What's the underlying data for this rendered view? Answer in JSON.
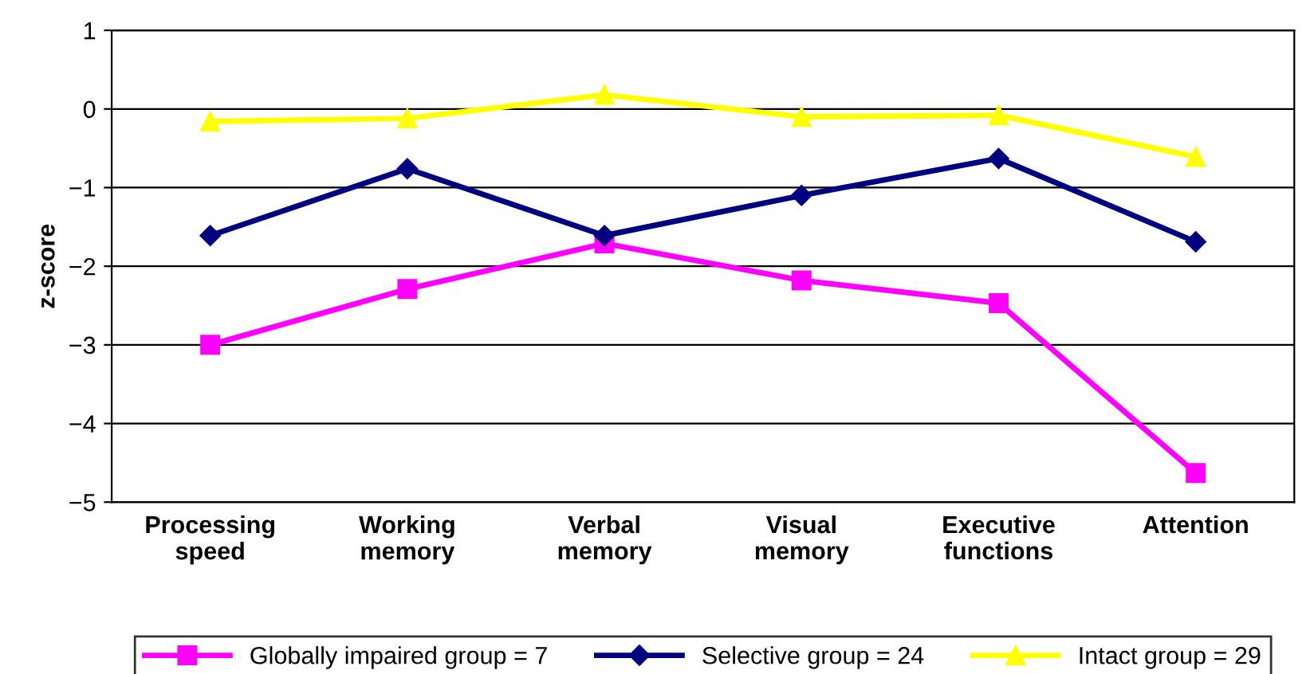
{
  "chart_data": {
    "type": "line",
    "ylabel": "z-score",
    "categories": [
      "Processing\nspeed",
      "Working\nmemory",
      "Verbal\nmemory",
      "Visual\nmemory",
      "Executive\nfunctions",
      "Attention"
    ],
    "ylim": [
      -5,
      1
    ],
    "yticks": [
      -5,
      -4,
      -3,
      -2,
      -1,
      0,
      1
    ],
    "grid": "y",
    "legend": "bottom",
    "series": [
      {
        "name": "Globally impaired group = 7",
        "color": "#ff00ff",
        "marker": "square",
        "values": [
          -3.0,
          -2.29,
          -1.71,
          -2.18,
          -2.47,
          -4.63
        ]
      },
      {
        "name": "Selective group = 24",
        "color": "#000080",
        "marker": "diamond",
        "values": [
          -1.61,
          -0.76,
          -1.61,
          -1.1,
          -0.63,
          -1.69
        ]
      },
      {
        "name": "Intact group = 29",
        "color": "#ffff00",
        "marker": "triangle",
        "values": [
          -0.16,
          -0.12,
          0.18,
          -0.1,
          -0.08,
          -0.61
        ]
      }
    ]
  }
}
